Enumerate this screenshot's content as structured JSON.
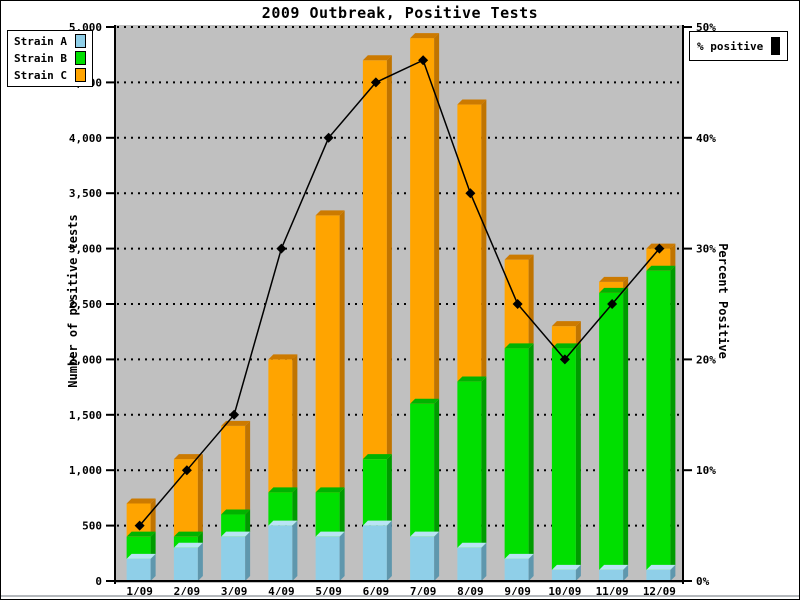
{
  "title": "2009 Outbreak, Positive Tests",
  "left_axis": {
    "title": "Number of positive tests",
    "ticks": [
      "0",
      "500",
      "1,000",
      "1,500",
      "2,000",
      "2,500",
      "3,000",
      "3,500",
      "4,000",
      "4,500",
      "5,000"
    ],
    "min": 0,
    "max": 5000,
    "step": 500
  },
  "right_axis": {
    "title": "Percent Positive",
    "ticks": [
      "0%",
      "10%",
      "20%",
      "30%",
      "40%",
      "50%"
    ],
    "min": 0,
    "max": 50,
    "step": 10
  },
  "colors": {
    "plot_background": "#c0c0c0",
    "grid": "#000000",
    "axis": "#000000",
    "strain_a_front": "#8fcfe8",
    "strain_a_side": "#5f97ad",
    "strain_a_top": "#b9e4f4",
    "strain_b_front": "#00df00",
    "strain_b_side": "#009b00",
    "strain_b_top": "#00b300",
    "strain_c_front": "#ffa400",
    "strain_c_side": "#c07400",
    "strain_c_top": "#cc7a00",
    "line": "#000000"
  },
  "chart_data": {
    "type": "bar",
    "subtype": "stacked-3d-with-line-overlay",
    "title": "2009 Outbreak, Positive Tests",
    "xlabel": "",
    "ylabel": "Number of positive tests",
    "y2label": "Percent Positive",
    "ylim": [
      0,
      5000
    ],
    "y2lim": [
      0,
      50
    ],
    "grid": "dotted-horizontal-every-500",
    "legend_position": "top-left",
    "categories": [
      "1/09",
      "2/09",
      "3/09",
      "4/09",
      "5/09",
      "6/09",
      "7/09",
      "8/09",
      "9/09",
      "10/09",
      "11/09",
      "12/09"
    ],
    "series": [
      {
        "name": "Strain A",
        "values": [
          200,
          300,
          400,
          500,
          400,
          500,
          400,
          300,
          200,
          100,
          100,
          100
        ]
      },
      {
        "name": "Strain B",
        "values": [
          200,
          100,
          200,
          300,
          400,
          600,
          1200,
          1500,
          1900,
          2000,
          2500,
          2700
        ]
      },
      {
        "name": "Strain C",
        "values": [
          300,
          700,
          800,
          1200,
          2500,
          3600,
          3300,
          2500,
          800,
          200,
          100,
          200
        ]
      }
    ],
    "stack_totals": [
      700,
      1100,
      1400,
      2000,
      3300,
      4700,
      4900,
      4300,
      2900,
      2300,
      2700,
      3000
    ],
    "line_series": {
      "name": "% positive",
      "axis": "right",
      "marker": "diamond",
      "values": [
        5,
        10,
        15,
        30,
        40,
        45,
        47,
        35,
        25,
        20,
        25,
        30
      ]
    }
  }
}
